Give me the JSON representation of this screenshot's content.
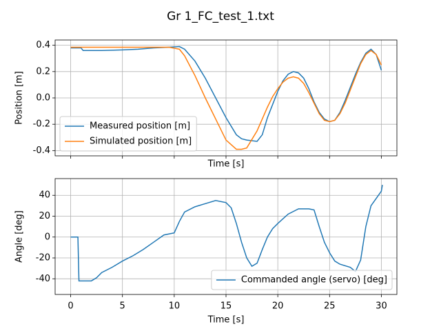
{
  "title": "Gr 1_FC_test_1.txt",
  "chart_data": [
    {
      "type": "line",
      "xlabel": "Time [s]",
      "ylabel": "Position [m]",
      "xlim": [
        -1.5,
        31.5
      ],
      "ylim": [
        -0.44,
        0.44
      ],
      "xticks": [
        0,
        5,
        10,
        15,
        20,
        25,
        30
      ],
      "yticks": [
        -0.4,
        -0.2,
        {
          "value": 0,
          "label": "0.0"
        },
        0.2,
        0.4
      ],
      "grid": true,
      "legend": "lower left",
      "x": [
        0,
        1,
        1.2,
        3,
        5,
        6.5,
        8,
        9.5,
        10.5,
        11,
        12,
        13,
        14,
        15,
        16,
        16.5,
        17,
        18,
        18.5,
        19,
        19.5,
        20,
        20.5,
        21,
        21.5,
        22,
        22.5,
        23,
        23.5,
        24,
        24.5,
        25,
        25.5,
        26,
        26.5,
        27,
        27.5,
        28,
        28.5,
        29,
        29.5,
        30
      ],
      "series": [
        {
          "name": "Measured position [m]",
          "color": "#1f77b4",
          "values": [
            0.38,
            0.38,
            0.36,
            0.36,
            0.365,
            0.37,
            0.38,
            0.385,
            0.39,
            0.37,
            0.28,
            0.15,
            0.0,
            -0.15,
            -0.28,
            -0.31,
            -0.32,
            -0.33,
            -0.28,
            -0.15,
            -0.05,
            0.05,
            0.13,
            0.18,
            0.2,
            0.19,
            0.15,
            0.07,
            -0.03,
            -0.11,
            -0.16,
            -0.18,
            -0.17,
            -0.11,
            -0.02,
            0.08,
            0.18,
            0.27,
            0.34,
            0.37,
            0.33,
            0.21
          ]
        },
        {
          "name": "Simulated position [m]",
          "color": "#ff7f0e",
          "values": [
            0.385,
            0.385,
            0.385,
            0.385,
            0.385,
            0.385,
            0.385,
            0.385,
            0.37,
            0.32,
            0.17,
            0.0,
            -0.16,
            -0.32,
            -0.39,
            -0.39,
            -0.38,
            -0.25,
            -0.16,
            -0.07,
            0.01,
            0.07,
            0.12,
            0.15,
            0.16,
            0.15,
            0.11,
            0.04,
            -0.04,
            -0.12,
            -0.17,
            -0.18,
            -0.17,
            -0.12,
            -0.04,
            0.06,
            0.16,
            0.26,
            0.33,
            0.36,
            0.33,
            0.25
          ]
        }
      ]
    },
    {
      "type": "line",
      "xlabel": "Time [s]",
      "ylabel": "Angle [deg]",
      "xlim": [
        -1.5,
        31.5
      ],
      "ylim": [
        -55,
        56
      ],
      "xticks": [
        0,
        5,
        10,
        15,
        20,
        25,
        30
      ],
      "yticks": [
        -40,
        -20,
        0,
        20,
        40
      ],
      "grid": true,
      "legend": "lower right",
      "x": [
        0,
        0.7,
        0.8,
        2,
        2.5,
        3,
        4,
        5,
        6,
        7,
        8,
        9,
        10,
        10.5,
        11,
        12,
        13,
        14,
        15,
        15.5,
        16,
        16.5,
        17,
        17.5,
        18,
        18.5,
        19,
        19.5,
        20,
        21,
        22,
        23,
        23.5,
        24,
        24.5,
        25,
        25.5,
        26,
        27,
        27.5,
        28,
        28.5,
        29,
        29.5,
        30,
        30.1
      ],
      "series": [
        {
          "name": "Commanded angle (servo) [deg]",
          "color": "#1f77b4",
          "values": [
            0,
            0,
            -42,
            -42,
            -39,
            -34,
            -29,
            -23,
            -18,
            -12,
            -5,
            2,
            4,
            15,
            24,
            29,
            32,
            35,
            33,
            28,
            13,
            -5,
            -20,
            -28,
            -25,
            -12,
            0,
            8,
            13,
            22,
            27,
            27,
            26,
            10,
            -5,
            -15,
            -23,
            -26,
            -29,
            -33,
            -22,
            10,
            30,
            37,
            44,
            50
          ]
        }
      ]
    }
  ]
}
